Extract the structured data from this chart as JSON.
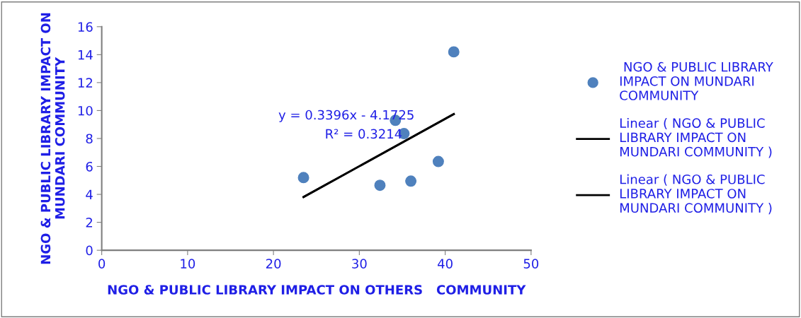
{
  "chart_data": {
    "type": "scatter",
    "xlabel": "NGO & PUBLIC LIBRARY IMPACT ON OTHERS   COMMUNITY",
    "ylabel": "NGO & PUBLIC LIBRARY IMPACT ON\nMUNDARI COMMUNITY",
    "series": [
      {
        "marker": "circle",
        "name": " NGO & PUBLIC LIBRARY\nIMPACT ON MUNDARI\nCOMMUNITY",
        "color": "#4f81bd",
        "x": [
          23.5,
          41.0,
          34.2,
          35.2,
          32.4,
          36.0,
          39.2
        ],
        "values": [
          5.2,
          14.2,
          9.3,
          8.35,
          4.65,
          4.95,
          6.35
        ]
      },
      {
        "type": "line",
        "name": "Linear ( NGO & PUBLIC\nLIBRARY IMPACT ON\nMUNDARI COMMUNITY )",
        "color": "#000000",
        "x": [
          23.5,
          41.0
        ],
        "values": [
          3.81,
          9.75
        ]
      },
      {
        "type": "line",
        "name": "Linear ( NGO & PUBLIC\nLIBRARY IMPACT ON\nMUNDARI COMMUNITY )",
        "color": "#000000",
        "x": [
          23.5,
          41.0
        ],
        "values": [
          3.81,
          9.75
        ]
      }
    ],
    "annotations": [
      "y = 0.3396x - 4.1725",
      "R² = 0.3214"
    ],
    "xlim": [
      0,
      50
    ],
    "xticks": [
      0,
      10,
      20,
      30,
      40,
      50
    ],
    "ylim": [
      0,
      16
    ],
    "yticks": [
      0,
      2,
      4,
      6,
      8,
      10,
      12,
      14,
      16
    ],
    "grid": false,
    "legend": "right"
  }
}
